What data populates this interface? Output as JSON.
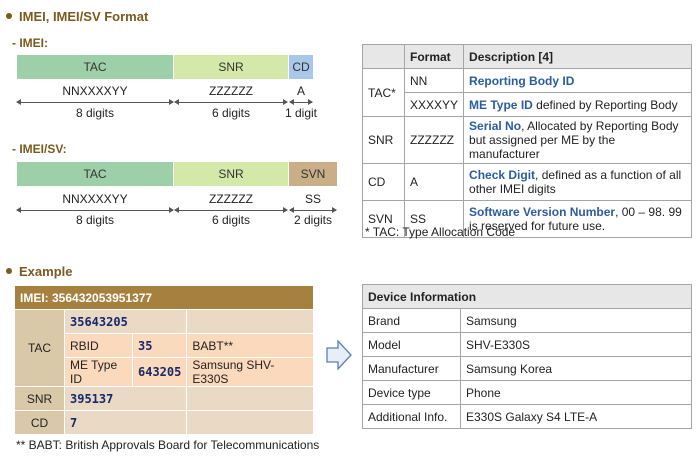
{
  "format_heading": "IMEI, IMEI/SV Format",
  "imei": {
    "label": "- IMEI:",
    "segments": [
      {
        "name": "TAC",
        "color": "#9dcfa8"
      },
      {
        "name": "SNR",
        "color": "#d4e8a9"
      },
      {
        "name": "CD",
        "color": "#a9c7e9"
      }
    ],
    "values": [
      "NNXXXXYY",
      "ZZZZZZ",
      "A"
    ],
    "digits": [
      "8 digits",
      "6 digits",
      "1 digit"
    ]
  },
  "imeisv": {
    "label": "- IMEI/SV:",
    "segments": [
      {
        "name": "TAC",
        "color": "#9dcfa8"
      },
      {
        "name": "SNR",
        "color": "#d4e8a9"
      },
      {
        "name": "SVN",
        "color": "#c9ae88"
      }
    ],
    "values": [
      "NNXXXXYY",
      "ZZZZZZ",
      "SS"
    ],
    "digits": [
      "8 digits",
      "6 digits",
      "2 digits"
    ]
  },
  "format_table": {
    "headers": [
      "",
      "Format",
      "Description [4]"
    ],
    "tac": {
      "label": "TAC*",
      "rows": [
        {
          "format": "NN",
          "term": "Reporting Body ID",
          "rest": ""
        },
        {
          "format": "XXXXYY",
          "term": "ME Type ID",
          "rest": " defined by Reporting Body"
        }
      ]
    },
    "rows": [
      {
        "label": "SNR",
        "format": "ZZZZZZ",
        "term": "Serial No",
        "rest": ",  Allocated by Reporting Body but assigned per ME by the manufacturer"
      },
      {
        "label": "CD",
        "format": "A",
        "term": "Check Digit",
        "rest": ", defined as a function of all other IMEI digits"
      },
      {
        "label": "SVN",
        "format": "SS",
        "term": "Software Version Number",
        "rest": ", 00 – 98. 99 is reserved for future use."
      }
    ],
    "footnote": "* TAC: Type Allocation Code"
  },
  "example_heading": "Example",
  "example": {
    "imei_line": "IMEI: 356432053951377",
    "tac_label": "TAC",
    "tac_value": "35643205",
    "rbid_label": "RBID",
    "rbid_value": "35",
    "rbid_desc": "BABT**",
    "me_label": "ME Type ID",
    "me_value": "643205",
    "me_desc": "Samsung  SHV-E330S",
    "snr_label": "SNR",
    "snr_value": "395137",
    "cd_label": "CD",
    "cd_value": "7",
    "footnote": "** BABT: British Approvals Board for Telecommunications"
  },
  "device": {
    "title": "Device Information",
    "rows": [
      {
        "key": "Brand",
        "value": "Samsung"
      },
      {
        "key": "Model",
        "value": "SHV-E330S"
      },
      {
        "key": "Manufacturer",
        "value": "Samsung Korea"
      },
      {
        "key": "Device type",
        "value": "Phone"
      },
      {
        "key": "Additional Info.",
        "value": "E330S Galaxy S4 LTE-A"
      }
    ]
  },
  "colors": {
    "heading": "#7a5a1f",
    "term_blue": "#2b5c9e",
    "example_header": "#a6803f",
    "number_navy": "#17296b"
  }
}
